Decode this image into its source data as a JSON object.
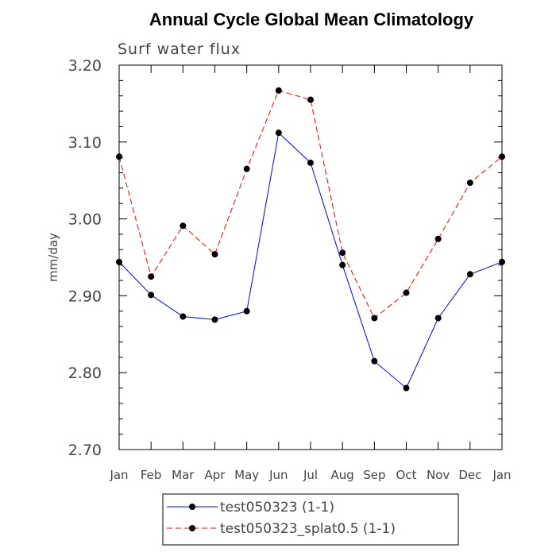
{
  "chart_data": {
    "type": "line",
    "title": "Annual Cycle Global Mean Climatology",
    "subtitle": "Surf water flux",
    "xlabel": "",
    "ylabel": "mm/day",
    "categories": [
      "Jan",
      "Feb",
      "Mar",
      "Apr",
      "May",
      "Jun",
      "Jul",
      "Aug",
      "Sep",
      "Oct",
      "Nov",
      "Dec",
      "Jan"
    ],
    "ylim": [
      2.7,
      3.2
    ],
    "yticks": [
      "2.70",
      "2.80",
      "2.90",
      "3.00",
      "3.10",
      "3.20"
    ],
    "grid": false,
    "legend_position": "bottom",
    "series": [
      {
        "name": "test050323 (1-1)",
        "color": "#0000ff",
        "style": "solid",
        "marker": "filled-circle",
        "values": [
          2.944,
          2.901,
          2.873,
          2.869,
          2.88,
          3.112,
          3.073,
          2.94,
          2.815,
          2.78,
          2.871,
          2.928,
          2.944
        ]
      },
      {
        "name": "test050323_splat0.5 (1-1)",
        "color": "#ff0000",
        "style": "dashed",
        "marker": "filled-circle",
        "values": [
          3.081,
          2.925,
          2.991,
          2.954,
          3.065,
          3.167,
          3.155,
          2.956,
          2.871,
          2.904,
          2.974,
          3.047,
          3.081
        ]
      }
    ]
  }
}
